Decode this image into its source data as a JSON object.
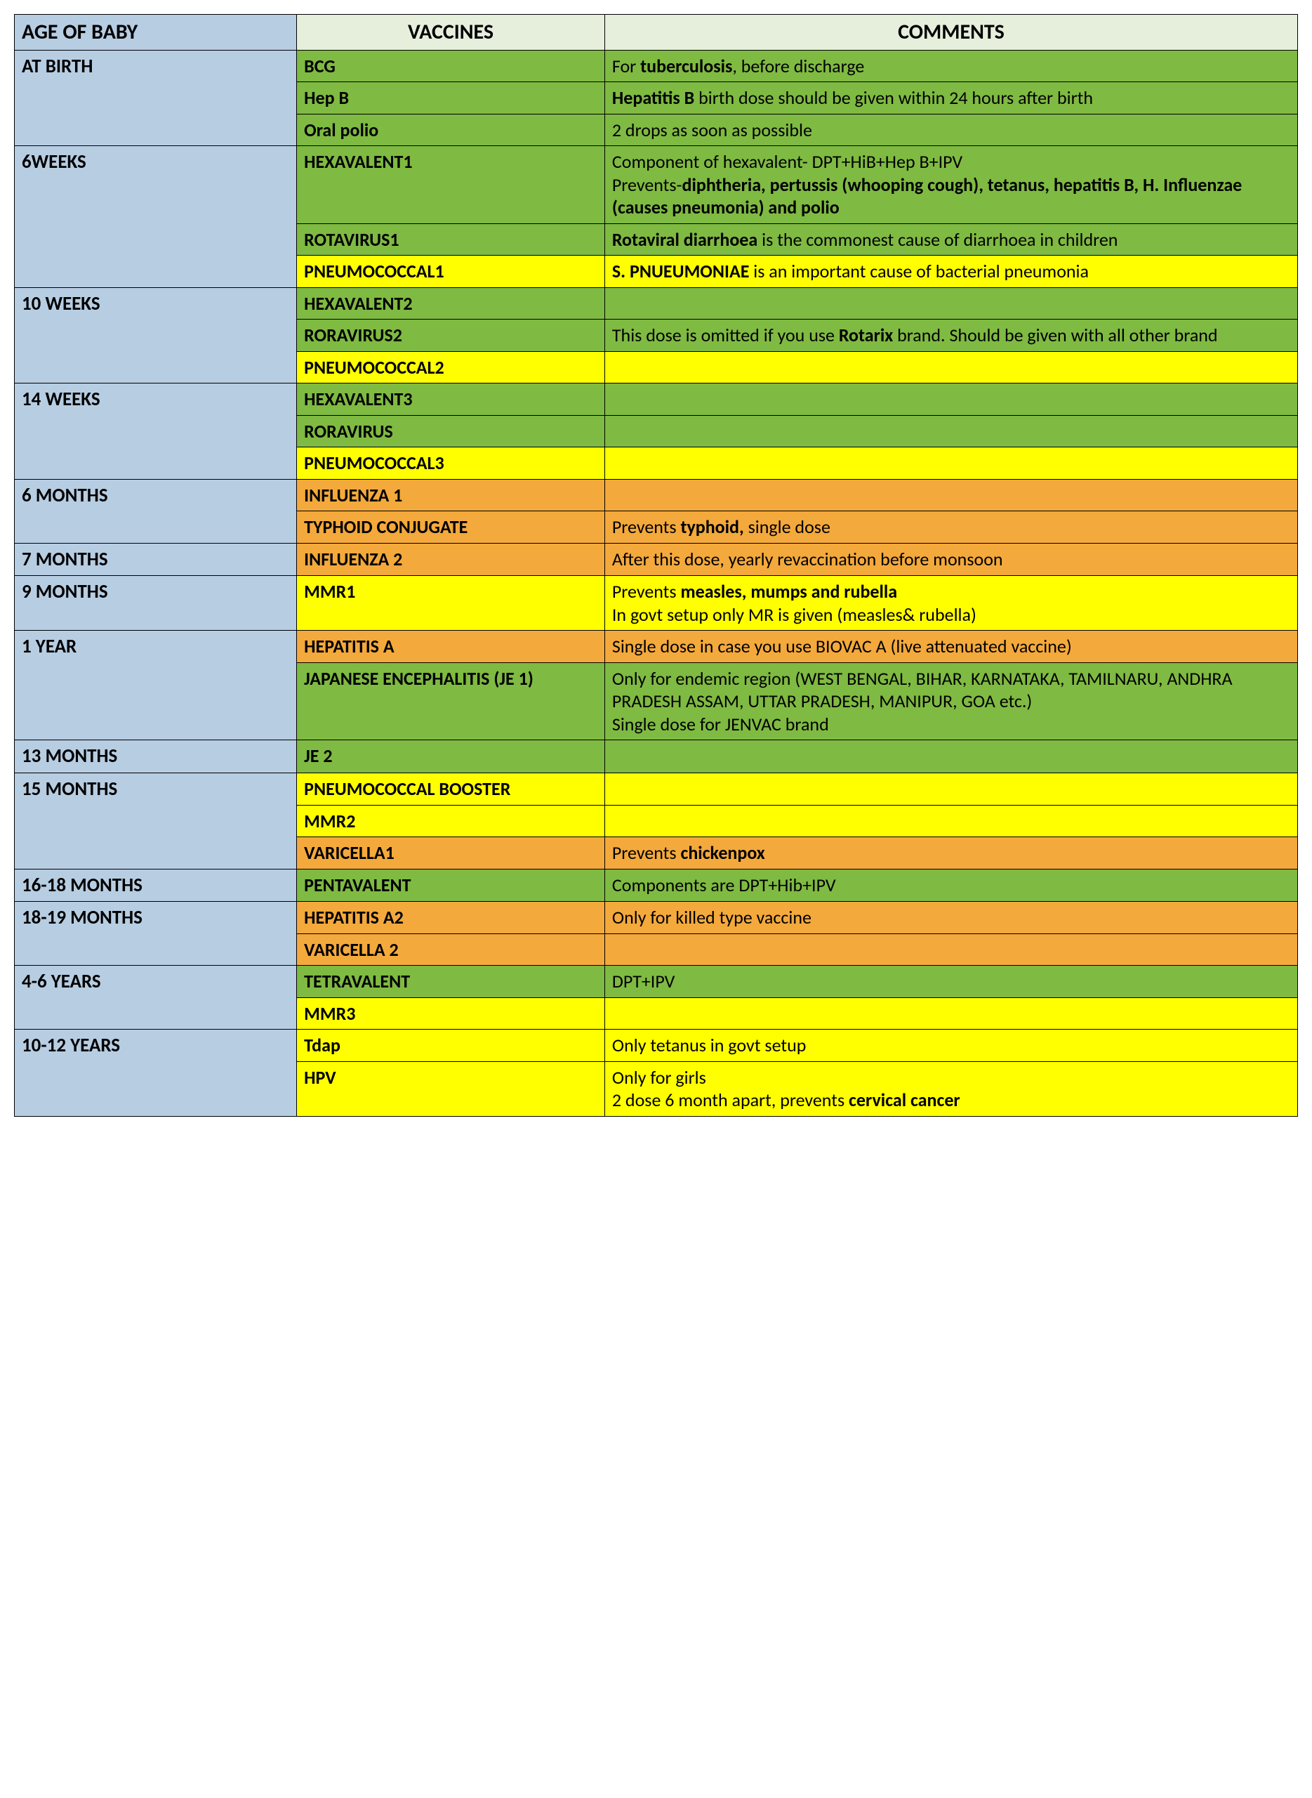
{
  "colors": {
    "header_age_bg": "#b7cde2",
    "header_vac_bg": "#e6efdc",
    "age_col_bg": "#b7cde2",
    "green": "#7fba42",
    "yellow": "#ffff00",
    "orange": "#f4a93c",
    "border": "#000000",
    "page_bg": "#ffffff"
  },
  "layout": {
    "col_widths_pct": [
      22,
      24,
      54
    ],
    "font_family": "Calibri",
    "header_fontsize_pt": 30,
    "body_fontsize_pt": 26
  },
  "headers": {
    "age": "AGE OF BABY",
    "vaccines": "VACCINES",
    "comments": "COMMENTS"
  },
  "rows": [
    {
      "age": "AT BIRTH",
      "age_rowspan": 3,
      "vaccine": "BCG",
      "vac_bg": "green",
      "comment_html": "For <b>tuberculosis</b>, before discharge",
      "com_bg": "green"
    },
    {
      "vaccine": "Hep B",
      "vac_bg": "green",
      "comment_html": "<b>Hepatitis B</b> birth dose should be given within 24 hours after birth",
      "com_bg": "green"
    },
    {
      "vaccine": "Oral polio",
      "vac_bg": "green",
      "comment_html": "2 drops as soon as possible",
      "com_bg": "green"
    },
    {
      "age": "6WEEKS",
      "age_rowspan": 3,
      "vaccine": "HEXAVALENT1",
      "vac_bg": "green",
      "comment_html": "Component of hexavalent- DPT+HiB+Hep B+IPV<br>Prevents-<b>diphtheria, pertussis (whooping cough), tetanus, hepatitis B, H. Influenzae (causes pneumonia) and polio</b>",
      "com_bg": "green"
    },
    {
      "vaccine": "ROTAVIRUS1",
      "vac_bg": "green",
      "comment_html": "<b>Rotaviral diarrhoea</b> is the commonest cause of diarrhoea in children",
      "com_bg": "green"
    },
    {
      "vaccine": "PNEUMOCOCCAL1",
      "vac_bg": "yellow",
      "comment_html": "<b>S. PNUEUMONIAE</b> is an important cause of bacterial pneumonia",
      "com_bg": "yellow"
    },
    {
      "age": "10 WEEKS",
      "age_rowspan": 3,
      "vaccine": "HEXAVALENT2",
      "vac_bg": "green",
      "comment_html": "",
      "com_bg": "green"
    },
    {
      "vaccine": "RORAVIRUS2",
      "vac_bg": "green",
      "comment_html": "This dose is omitted if you use <b>Rotarix</b> brand. Should be given with all other brand",
      "com_bg": "green"
    },
    {
      "vaccine": "PNEUMOCOCCAL2",
      "vac_bg": "yellow",
      "comment_html": "",
      "com_bg": "yellow"
    },
    {
      "age": "14 WEEKS",
      "age_rowspan": 3,
      "vaccine": "HEXAVALENT3",
      "vac_bg": "green",
      "comment_html": "",
      "com_bg": "green"
    },
    {
      "vaccine": "RORAVIRUS",
      "vac_bg": "green",
      "comment_html": "",
      "com_bg": "green"
    },
    {
      "vaccine": "PNEUMOCOCCAL3",
      "vac_bg": "yellow",
      "comment_html": "",
      "com_bg": "yellow"
    },
    {
      "age": "6 MONTHS",
      "age_rowspan": 2,
      "vaccine": "INFLUENZA 1",
      "vac_bg": "orange",
      "comment_html": "",
      "com_bg": "orange"
    },
    {
      "vaccine": "TYPHOID CONJUGATE",
      "vac_bg": "orange",
      "comment_html": "Prevents <b>typhoid,</b> single dose",
      "com_bg": "orange"
    },
    {
      "age": "7 MONTHS",
      "age_rowspan": 1,
      "vaccine": "INFLUENZA 2",
      "vac_bg": "orange",
      "comment_html": "After this dose, yearly revaccination before monsoon",
      "com_bg": "orange"
    },
    {
      "age": "9 MONTHS",
      "age_rowspan": 1,
      "vaccine": "MMR1",
      "vac_bg": "yellow",
      "comment_html": "Prevents <b>measles, mumps and rubella</b><br>In govt setup only MR is given (measles& rubella)",
      "com_bg": "yellow"
    },
    {
      "age": "1 YEAR",
      "age_rowspan": 2,
      "vaccine": "HEPATITIS A",
      "vac_bg": "orange",
      "comment_html": "Single dose in case you use BIOVAC A (live attenuated vaccine)",
      "com_bg": "orange"
    },
    {
      "vaccine": "JAPANESE ENCEPHALITIS (JE 1)",
      "vac_bg": "green",
      "comment_html": "Only for endemic region (WEST BENGAL, BIHAR, KARNATAKA, TAMILNARU, ANDHRA PRADESH ASSAM, UTTAR PRADESH, MANIPUR, GOA etc.)<br>Single dose for JENVAC brand",
      "com_bg": "green"
    },
    {
      "age": "13 MONTHS",
      "age_rowspan": 1,
      "vaccine": "JE 2",
      "vac_bg": "green",
      "comment_html": "",
      "com_bg": "green"
    },
    {
      "age": "15 MONTHS",
      "age_rowspan": 3,
      "vaccine": "PNEUMOCOCCAL BOOSTER",
      "vac_bg": "yellow",
      "comment_html": "",
      "com_bg": "yellow"
    },
    {
      "vaccine": "MMR2",
      "vac_bg": "yellow",
      "comment_html": "",
      "com_bg": "yellow"
    },
    {
      "vaccine": "VARICELLA1",
      "vac_bg": "orange",
      "comment_html": "Prevents <b>chickenpox</b>",
      "com_bg": "orange"
    },
    {
      "age": "16-18 MONTHS",
      "age_rowspan": 1,
      "vaccine": "PENTAVALENT",
      "vac_bg": "green",
      "comment_html": "Components are DPT+Hib+IPV",
      "com_bg": "green"
    },
    {
      "age": "18-19 MONTHS",
      "age_rowspan": 2,
      "vaccine": "HEPATITIS A2",
      "vac_bg": "orange",
      "comment_html": "Only for killed type vaccine",
      "com_bg": "orange"
    },
    {
      "vaccine": "VARICELLA 2",
      "vac_bg": "orange",
      "comment_html": "",
      "com_bg": "orange"
    },
    {
      "age": "4-6 YEARS",
      "age_rowspan": 2,
      "vaccine": "TETRAVALENT",
      "vac_bg": "green",
      "comment_html": "DPT+IPV",
      "com_bg": "green"
    },
    {
      "vaccine": "MMR3",
      "vac_bg": "yellow",
      "comment_html": "",
      "com_bg": "yellow"
    },
    {
      "age": "10-12 YEARS",
      "age_rowspan": 2,
      "vaccine": "Tdap",
      "vac_bg": "yellow",
      "comment_html": "Only tetanus in govt setup",
      "com_bg": "yellow"
    },
    {
      "vaccine": "HPV",
      "vac_bg": "yellow",
      "comment_html": "Only for girls<br>2 dose 6 month apart, prevents <b>cervical cancer</b>",
      "com_bg": "yellow"
    }
  ]
}
